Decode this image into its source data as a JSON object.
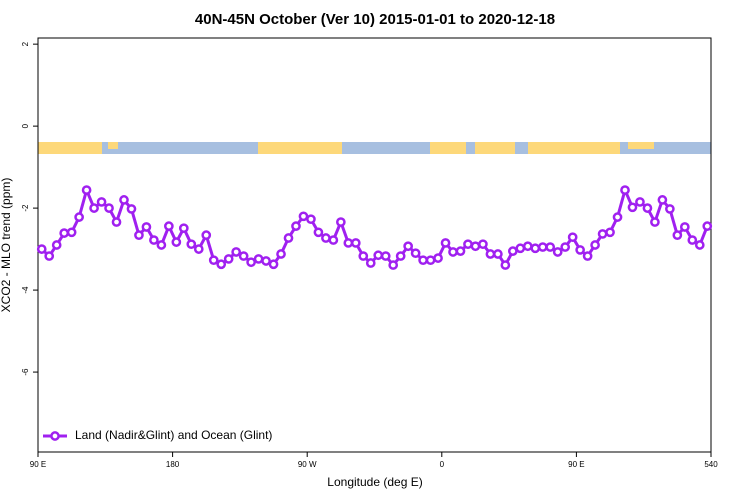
{
  "chart_data": {
    "type": "line",
    "title": "40N-45N October (Ver 10)   2015-01-01 to 2020-12-18",
    "x_label": "Longitude (deg E)",
    "y_label": "XCO2 - MLO trend (ppm)",
    "xlim": [
      90,
      540
    ],
    "xticks": [
      {
        "value": 90,
        "label": "90 E"
      },
      180,
      {
        "value": 270,
        "label": "90 W"
      },
      {
        "value": 360,
        "label": "0"
      },
      {
        "value": 450,
        "label": "90 E"
      },
      540
    ],
    "ylim": [
      -7.95,
      2.15
    ],
    "yticks": [
      2,
      0,
      -2,
      -4,
      -6
    ],
    "legend": "bottom-left",
    "x": [
      92.5,
      97.5,
      102.5,
      107.5,
      112.5,
      117.5,
      122.5,
      127.5,
      132.5,
      137.5,
      142.5,
      147.5,
      152.5,
      157.5,
      162.5,
      167.5,
      172.5,
      177.5,
      182.5,
      187.5,
      192.5,
      197.5,
      202.5,
      207.5,
      212.5,
      217.5,
      222.5,
      227.5,
      232.5,
      237.5,
      242.5,
      247.5,
      252.5,
      257.5,
      262.5,
      267.5,
      272.5,
      277.5,
      282.5,
      287.5,
      292.5,
      297.5,
      302.5,
      307.5,
      312.5,
      317.5,
      322.5,
      327.5,
      332.5,
      337.5,
      342.5,
      347.5,
      352.5,
      357.5,
      362.5,
      367.5,
      372.5,
      377.5,
      382.5,
      387.5,
      392.5,
      397.5,
      402.5,
      407.5,
      412.5,
      417.5,
      422.5,
      427.5,
      432.5,
      437.5,
      442.5,
      447.5,
      452.5,
      457.5,
      462.5,
      467.5,
      472.5,
      477.5,
      482.5,
      487.5,
      492.5,
      497.5,
      502.5,
      507.5,
      512.5,
      517.5,
      522.5,
      527.5,
      532.5,
      537.5
    ],
    "series": [
      {
        "name": "Land (Nadir&Glint) and Ocean (Glint)",
        "color": "#a020f0",
        "values": [
          -3.0,
          -3.17,
          -2.9,
          -2.61,
          -2.59,
          -2.22,
          -1.56,
          -2.0,
          -1.85,
          -2.0,
          -2.34,
          -1.8,
          -2.02,
          -2.66,
          -2.46,
          -2.78,
          -2.9,
          -2.44,
          -2.83,
          -2.49,
          -2.88,
          -3.0,
          -2.66,
          -3.27,
          -3.37,
          -3.24,
          -3.07,
          -3.17,
          -3.32,
          -3.24,
          -3.29,
          -3.37,
          -3.12,
          -2.73,
          -2.44,
          -2.2,
          -2.27,
          -2.59,
          -2.73,
          -2.78,
          -2.34,
          -2.85,
          -2.85,
          -3.17,
          -3.34,
          -3.15,
          -3.17,
          -3.39,
          -3.17,
          -2.93,
          -3.1,
          -3.27,
          -3.27,
          -3.22,
          -2.85,
          -3.07,
          -3.05,
          -2.88,
          -2.93,
          -2.88,
          -3.12,
          -3.12,
          -3.39,
          -3.05,
          -2.98,
          -2.93,
          -2.98,
          -2.95,
          -2.95,
          -3.07,
          -2.95,
          -2.71,
          -3.02,
          -3.17,
          -2.9,
          -2.63,
          -2.59,
          -2.22,
          -1.56,
          -1.98,
          -1.85,
          -2.0,
          -2.34,
          -1.8,
          -2.02,
          -2.66,
          -2.46,
          -2.78,
          -2.9,
          -2.44
        ]
      }
    ]
  }
}
